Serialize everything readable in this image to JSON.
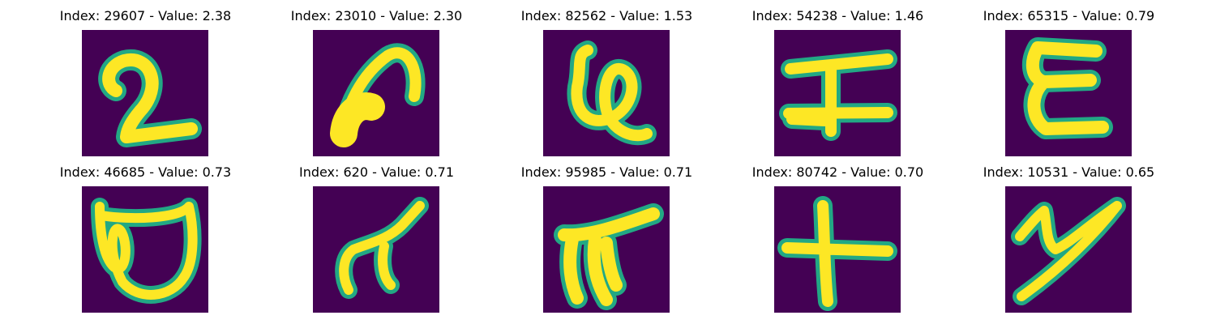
{
  "background": "#440154",
  "stroke_colors": {
    "edge": "#22a884",
    "core": "#fde725"
  },
  "samples": [
    {
      "title": "Index: 29607 - Value: 2.38",
      "glyph": "digit-two-glyph"
    },
    {
      "title": "Index: 23010 - Value: 2.30",
      "glyph": "hook-stroke-glyph"
    },
    {
      "title": "Index: 82562 - Value: 1.53",
      "glyph": "looped-glyph"
    },
    {
      "title": "Index: 54238 - Value: 1.46",
      "glyph": "i-beam-glyph"
    },
    {
      "title": "Index: 65315 - Value: 0.79",
      "glyph": "letter-e-glyph"
    },
    {
      "title": "Index: 46685 - Value: 0.73",
      "glyph": "boxed-loop-glyph"
    },
    {
      "title": "Index: 620 - Value: 0.71",
      "glyph": "pi-like-glyph"
    },
    {
      "title": "Index: 95985 - Value: 0.71",
      "glyph": "bold-pi-glyph"
    },
    {
      "title": "Index: 80742 - Value: 0.70",
      "glyph": "plus-cross-glyph"
    },
    {
      "title": "Index: 10531 - Value: 0.65",
      "glyph": "slanted-y-glyph"
    }
  ]
}
